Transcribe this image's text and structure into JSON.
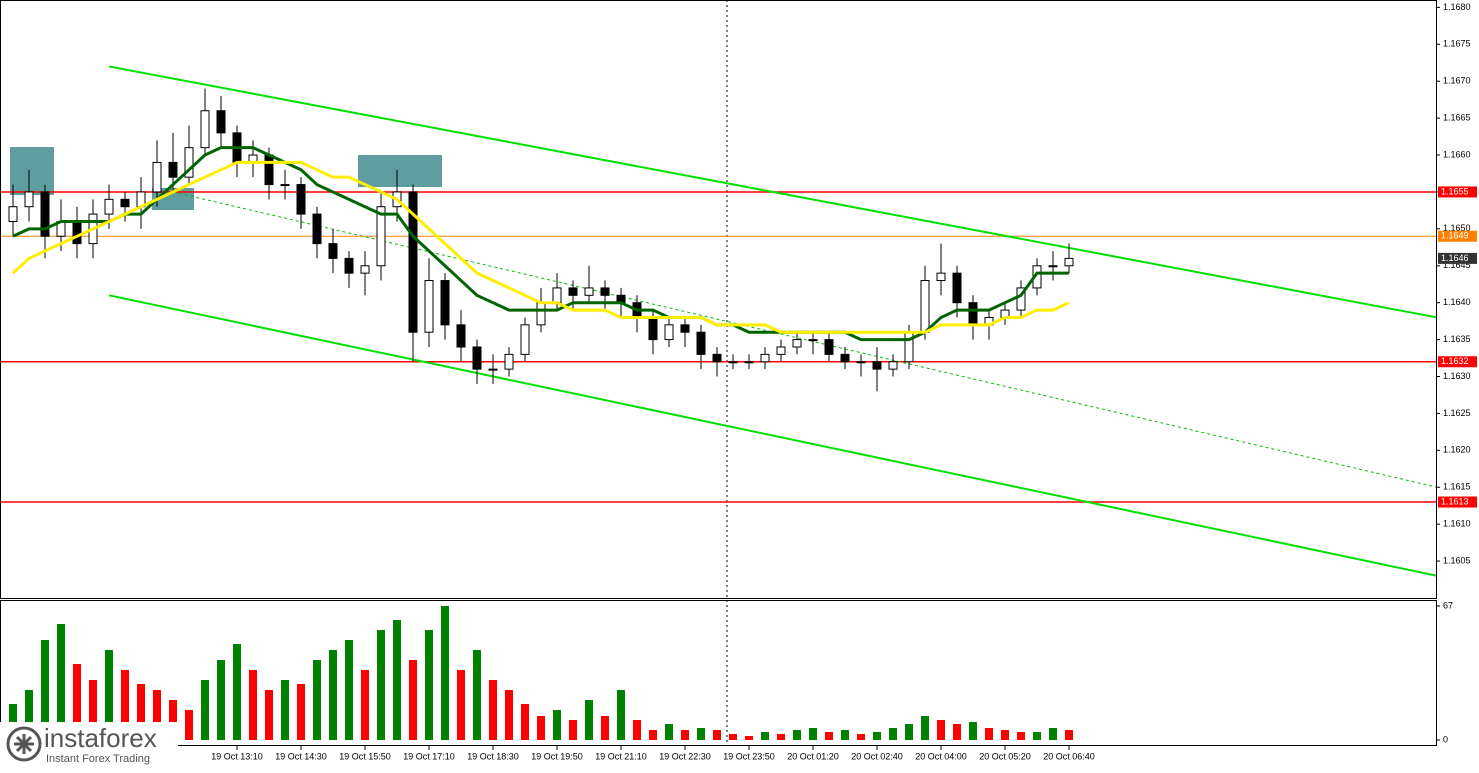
{
  "chart_data": {
    "type": "candlestick",
    "categories": [
      null,
      null,
      null,
      null,
      null,
      null,
      null,
      null,
      null,
      null,
      null,
      null,
      null,
      null,
      "19 Oct 13:10",
      null,
      null,
      null,
      "19 Oct 14:30",
      null,
      null,
      null,
      "19 Oct 15:50",
      null,
      null,
      null,
      "19 Oct 17:10",
      null,
      null,
      null,
      "19 Oct 18:30",
      null,
      null,
      null,
      "19 Oct 19:50",
      null,
      null,
      null,
      "19 Oct 21:10",
      null,
      null,
      null,
      "19 Oct 22:30",
      null,
      null,
      null,
      "19 Oct 23:50",
      null,
      null,
      null,
      "20 Oct 01:20",
      null,
      null,
      null,
      "20 Oct 02:40",
      null,
      null,
      null,
      "20 Oct 04:00",
      null,
      null,
      null,
      "20 Oct 05:20",
      null,
      null,
      null,
      "20 Oct 06:40"
    ],
    "open": [
      1.1651,
      1.1653,
      1.1655,
      1.1649,
      1.1651,
      1.1648,
      1.1652,
      1.1654,
      1.1653,
      1.1655,
      1.1659,
      1.1657,
      1.1661,
      1.1666,
      1.1663,
      1.1659,
      1.166,
      1.1656,
      1.1656,
      1.1652,
      1.1648,
      1.1646,
      1.1644,
      1.1645,
      1.1653,
      1.1655,
      1.1636,
      1.1643,
      1.1637,
      1.1634,
      1.1631,
      1.1631,
      1.1633,
      1.1637,
      1.164,
      1.1642,
      1.1641,
      1.1642,
      1.1641,
      1.164,
      1.1638,
      1.1635,
      1.1637,
      1.1636,
      1.1633,
      1.1632,
      1.1632,
      1.1632,
      1.1633,
      1.1634,
      1.1635,
      1.1635,
      1.1633,
      1.1632,
      1.1632,
      1.1631,
      1.1632,
      1.1636,
      1.1643,
      1.1644,
      1.164,
      1.1637,
      1.1638,
      1.1639,
      1.1642,
      1.1645,
      1.1645
    ],
    "high": [
      1.1656,
      1.1658,
      1.1656,
      1.1654,
      1.1653,
      1.1654,
      1.1656,
      1.1655,
      1.1657,
      1.1662,
      1.1663,
      1.1664,
      1.1669,
      1.1668,
      1.1664,
      1.1662,
      1.1661,
      1.1658,
      1.1657,
      1.1653,
      1.165,
      1.1647,
      1.1647,
      1.1655,
      1.1658,
      1.1656,
      1.1646,
      1.1644,
      1.1639,
      1.1635,
      1.1633,
      1.1634,
      1.1638,
      1.1642,
      1.1644,
      1.1643,
      1.1645,
      1.1643,
      1.1642,
      1.1641,
      1.1639,
      1.1638,
      1.1638,
      1.1637,
      1.1634,
      1.1633,
      1.1633,
      1.1634,
      1.1635,
      1.1636,
      1.1636,
      1.1636,
      1.1634,
      1.1633,
      1.1634,
      1.1633,
      1.1637,
      1.1645,
      1.1648,
      1.1645,
      1.1641,
      1.1639,
      1.164,
      1.1643,
      1.1646,
      1.1647,
      1.1648
    ],
    "low": [
      1.1649,
      1.1651,
      1.1646,
      1.1647,
      1.1646,
      1.1646,
      1.165,
      1.1651,
      1.165,
      1.1653,
      1.1655,
      1.1656,
      1.166,
      1.1661,
      1.1657,
      1.1657,
      1.1654,
      1.1654,
      1.165,
      1.1646,
      1.1644,
      1.1642,
      1.1641,
      1.1643,
      1.1651,
      1.1632,
      1.1634,
      1.1635,
      1.1632,
      1.1629,
      1.1629,
      1.163,
      1.1632,
      1.1636,
      1.1639,
      1.1639,
      1.164,
      1.1639,
      1.1638,
      1.1636,
      1.1633,
      1.1634,
      1.1634,
      1.1631,
      1.163,
      1.1631,
      1.1631,
      1.1631,
      1.1632,
      1.1633,
      1.1633,
      1.1632,
      1.1631,
      1.163,
      1.1628,
      1.163,
      1.1631,
      1.1635,
      1.1641,
      1.1638,
      1.1635,
      1.1635,
      1.1637,
      1.1638,
      1.1641,
      1.1643,
      1.1644
    ],
    "close": [
      1.1653,
      1.1655,
      1.1649,
      1.1651,
      1.1648,
      1.1652,
      1.1654,
      1.1653,
      1.1655,
      1.1659,
      1.1657,
      1.1661,
      1.1666,
      1.1663,
      1.1659,
      1.166,
      1.1656,
      1.1656,
      1.1652,
      1.1648,
      1.1646,
      1.1644,
      1.1645,
      1.1653,
      1.1655,
      1.1636,
      1.1643,
      1.1637,
      1.1634,
      1.1631,
      1.1631,
      1.1633,
      1.1637,
      1.164,
      1.1642,
      1.1641,
      1.1642,
      1.1641,
      1.164,
      1.1638,
      1.1635,
      1.1637,
      1.1636,
      1.1633,
      1.1632,
      1.1632,
      1.1632,
      1.1633,
      1.1634,
      1.1635,
      1.1635,
      1.1633,
      1.1632,
      1.1632,
      1.1631,
      1.1632,
      1.1636,
      1.1643,
      1.1644,
      1.164,
      1.1637,
      1.1638,
      1.1639,
      1.1642,
      1.1645,
      1.1645,
      1.1646
    ],
    "candle_color": "#000000",
    "series": [
      {
        "color": "#006400",
        "values": [
          1.1649,
          1.165,
          1.165,
          1.1651,
          1.1651,
          1.1651,
          1.1651,
          1.1652,
          1.1652,
          1.1654,
          1.1656,
          1.1658,
          1.166,
          1.1661,
          1.1661,
          1.1661,
          1.166,
          1.1659,
          1.1658,
          1.1656,
          1.1655,
          1.1654,
          1.1653,
          1.1652,
          1.1652,
          1.1649,
          1.1647,
          1.1645,
          1.1643,
          1.1641,
          1.164,
          1.1639,
          1.1639,
          1.1639,
          1.1639,
          1.164,
          1.164,
          1.164,
          1.164,
          1.1639,
          1.1639,
          1.1638,
          1.1638,
          1.1638,
          1.1637,
          1.1637,
          1.1636,
          1.1636,
          1.1636,
          1.1636,
          1.1636,
          1.1636,
          1.1636,
          1.1635,
          1.1635,
          1.1635,
          1.1635,
          1.1636,
          1.1638,
          1.1639,
          1.1639,
          1.1639,
          1.164,
          1.1641,
          1.1644,
          1.1644,
          1.1644
        ]
      },
      {
        "color": "#ffee00",
        "values": [
          1.1644,
          1.1646,
          1.1647,
          1.1648,
          1.1649,
          1.165,
          1.1651,
          1.1652,
          1.1653,
          1.1654,
          1.1655,
          1.1656,
          1.1657,
          1.1658,
          1.1659,
          1.1659,
          1.1659,
          1.1659,
          1.1659,
          1.1658,
          1.1657,
          1.1657,
          1.1656,
          1.1655,
          1.1654,
          1.1652,
          1.165,
          1.1648,
          1.1646,
          1.1644,
          1.1643,
          1.1642,
          1.1641,
          1.164,
          1.164,
          1.1639,
          1.1639,
          1.1639,
          1.1638,
          1.1638,
          1.1638,
          1.1638,
          1.1638,
          1.1638,
          1.1637,
          1.1637,
          1.1637,
          1.1637,
          1.1636,
          1.1636,
          1.1636,
          1.1636,
          1.1636,
          1.1636,
          1.1636,
          1.1636,
          1.1636,
          1.1636,
          1.1637,
          1.1637,
          1.1637,
          1.1637,
          1.1638,
          1.1638,
          1.1639,
          1.1639,
          1.164
        ]
      }
    ],
    "volume": [
      18,
      25,
      50,
      58,
      38,
      30,
      45,
      35,
      28,
      25,
      20,
      15,
      30,
      40,
      48,
      35,
      25,
      30,
      28,
      40,
      45,
      50,
      35,
      55,
      60,
      40,
      55,
      67,
      35,
      45,
      30,
      25,
      18,
      12,
      15,
      10,
      20,
      12,
      25,
      10,
      5,
      8,
      5,
      6,
      5,
      3,
      2,
      4,
      3,
      5,
      6,
      4,
      5,
      3,
      4,
      6,
      8,
      12,
      10,
      8,
      9,
      6,
      5,
      4,
      4,
      6,
      5
    ],
    "volume_up_color": "#008000",
    "volume_down_color": "#ff0000",
    "ylim": [
      1.16,
      1.1681
    ],
    "yticks": [
      {
        "value": 1.1605,
        "label": "1.1605"
      },
      {
        "value": 1.161,
        "label": "1.1610"
      },
      {
        "value": 1.1615,
        "label": "1.1615"
      },
      {
        "value": 1.162,
        "label": "1.1620"
      },
      {
        "value": 1.1625,
        "label": "1.1625"
      },
      {
        "value": 1.163,
        "label": "1.1630"
      },
      {
        "value": 1.1635,
        "label": "1.1635"
      },
      {
        "value": 1.164,
        "label": "1.1640"
      },
      {
        "value": 1.1645,
        "label": "1.1645"
      },
      {
        "value": 1.165,
        "label": "1.1650"
      },
      {
        "value": 1.1655,
        "label": "1.1655"
      },
      {
        "value": 1.166,
        "label": "1.1660"
      },
      {
        "value": 1.1665,
        "label": "1.1665"
      },
      {
        "value": 1.167,
        "label": "1.1670"
      },
      {
        "value": 1.1675,
        "label": "1.1675"
      },
      {
        "value": 1.168,
        "label": "1.1680"
      }
    ],
    "y2lim": [
      0,
      67
    ],
    "y2ticks": [
      67,
      0
    ],
    "grid": false,
    "levels": [
      {
        "value": 1.1655,
        "label": "1.1655",
        "color": "#ff0000",
        "line": true
      },
      {
        "value": 1.1649,
        "label": "1.1649",
        "color": "#ff8000",
        "line": true
      },
      {
        "value": 1.1646,
        "label": "1.1646",
        "color": "#333333",
        "line": false
      },
      {
        "value": 1.1632,
        "label": "1.1632",
        "color": "#ff0000",
        "line": true
      },
      {
        "value": 1.1613,
        "label": "1.1613",
        "color": "#ff0000",
        "line": true
      }
    ],
    "trendlines": [
      {
        "color": "#00e000",
        "dashed": false,
        "points": [
          [
            6,
            1.1672
          ],
          [
            89,
            1.1638
          ]
        ]
      },
      {
        "color": "#00e000",
        "dashed": false,
        "points": [
          [
            6,
            1.1641
          ],
          [
            89,
            1.1603
          ]
        ]
      },
      {
        "color": "#00c000",
        "dashed": true,
        "points": [
          [
            10,
            1.1655
          ],
          [
            89,
            1.1615
          ]
        ]
      }
    ]
  },
  "logo": {
    "name": "instaforex",
    "tagline": "Instant Forex Trading"
  }
}
